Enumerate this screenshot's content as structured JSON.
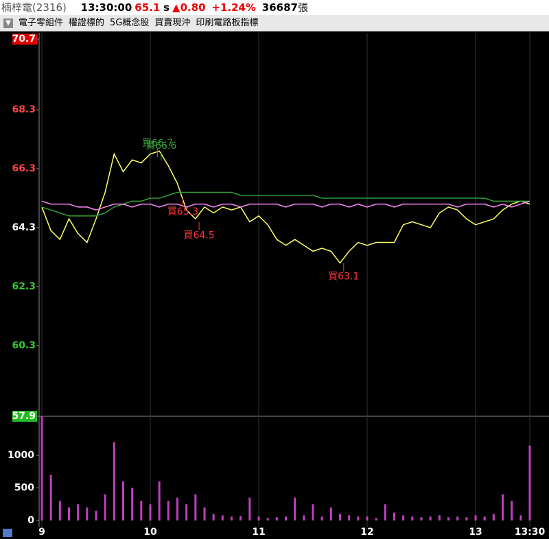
{
  "header": {
    "stock": "楠梓電(2316)",
    "time": "13:30:00",
    "price": "65.1",
    "price_flag": "s",
    "change": "0.80",
    "change_pct": "+1.24%",
    "volume": "36687",
    "volume_unit": "張"
  },
  "tags": [
    "電子零組件",
    "權證標的",
    "5G概念股",
    "買賣現沖",
    "印刷電路板指標"
  ],
  "chart_data": [
    {
      "type": "line",
      "reference": 64.3,
      "x": [
        0,
        5,
        10,
        15,
        20,
        25,
        30,
        35,
        40,
        45,
        50,
        55,
        60,
        65,
        70,
        75,
        80,
        85,
        90,
        95,
        100,
        105,
        110,
        115,
        120,
        125,
        130,
        135,
        140,
        145,
        150,
        155,
        160,
        165,
        170,
        175,
        180,
        185,
        190,
        195,
        200,
        205,
        210,
        215,
        220,
        225,
        230,
        235,
        240,
        245,
        250,
        255,
        260,
        265,
        270
      ],
      "xlim": [
        0,
        270
      ],
      "xticks": [
        {
          "value": 0,
          "label": "9"
        },
        {
          "value": 60,
          "label": "10"
        },
        {
          "value": 120,
          "label": "11"
        },
        {
          "value": 180,
          "label": "12"
        },
        {
          "value": 240,
          "label": "13"
        },
        {
          "value": 270,
          "label": "13:30"
        }
      ],
      "ylim": [
        57.9,
        70.7
      ],
      "yticks": [
        70.7,
        68.3,
        66.3,
        64.3,
        62.3,
        60.3,
        57.9
      ],
      "series": [
        {
          "color": "#ffff66",
          "values": [
            65.0,
            64.2,
            63.9,
            64.6,
            64.1,
            63.8,
            64.6,
            65.5,
            66.8,
            66.2,
            66.6,
            66.5,
            66.8,
            66.9,
            66.4,
            65.8,
            64.9,
            64.6,
            65.0,
            64.8,
            65.0,
            64.9,
            65.0,
            64.5,
            64.7,
            64.4,
            63.9,
            63.7,
            63.9,
            63.7,
            63.5,
            63.6,
            63.5,
            63.1,
            63.5,
            63.8,
            63.7,
            63.8,
            63.8,
            63.8,
            64.4,
            64.5,
            64.4,
            64.3,
            64.8,
            65.0,
            64.9,
            64.6,
            64.4,
            64.5,
            64.6,
            64.9,
            65.1,
            65.2,
            65.1
          ]
        },
        {
          "color": "#33a033",
          "values": [
            65.0,
            64.9,
            64.8,
            64.7,
            64.7,
            64.7,
            64.7,
            64.8,
            65.0,
            65.1,
            65.2,
            65.2,
            65.3,
            65.3,
            65.4,
            65.5,
            65.5,
            65.5,
            65.5,
            65.5,
            65.5,
            65.5,
            65.4,
            65.4,
            65.4,
            65.4,
            65.4,
            65.4,
            65.4,
            65.4,
            65.4,
            65.3,
            65.3,
            65.3,
            65.3,
            65.3,
            65.3,
            65.3,
            65.3,
            65.3,
            65.3,
            65.3,
            65.3,
            65.3,
            65.3,
            65.3,
            65.3,
            65.3,
            65.3,
            65.3,
            65.2,
            65.2,
            65.2,
            65.2,
            65.2
          ]
        },
        {
          "color": "#ff88ff",
          "values": [
            65.2,
            65.1,
            65.1,
            65.1,
            65.0,
            65.0,
            64.9,
            65.0,
            65.1,
            65.1,
            65.0,
            65.1,
            65.1,
            65.0,
            65.1,
            65.1,
            65.0,
            65.1,
            65.1,
            65.0,
            65.1,
            65.1,
            65.0,
            65.1,
            65.1,
            65.1,
            65.1,
            65.0,
            65.1,
            65.1,
            65.1,
            65.0,
            65.1,
            65.1,
            65.0,
            65.1,
            65.0,
            65.1,
            65.1,
            65.0,
            65.1,
            65.1,
            65.1,
            65.1,
            65.1,
            65.1,
            65.0,
            65.1,
            65.1,
            65.1,
            65.0,
            65.1,
            65.0,
            65.1,
            65.2
          ]
        }
      ],
      "annotations": [
        {
          "label": "買66.7",
          "x": 64,
          "y": 66.7,
          "color": "#33a033",
          "side": "above"
        },
        {
          "label": "買66.6",
          "x": 66,
          "y": 66.6,
          "color": "#33a033",
          "side": "above"
        },
        {
          "label": "買65.3",
          "x": 78,
          "y": 65.3,
          "color": "#ff3333",
          "side": "below"
        },
        {
          "label": "買64.5",
          "x": 87,
          "y": 64.5,
          "color": "#ff3333",
          "side": "below"
        },
        {
          "label": "買63.1",
          "x": 167,
          "y": 63.1,
          "color": "#ff3333",
          "side": "below"
        }
      ]
    },
    {
      "type": "bar",
      "color": "#c040c0",
      "ylim": [
        0,
        1600
      ],
      "yticks": [
        1000,
        500,
        0
      ],
      "x": [
        0,
        5,
        10,
        15,
        20,
        25,
        30,
        35,
        40,
        45,
        50,
        55,
        60,
        65,
        70,
        75,
        80,
        85,
        90,
        95,
        100,
        105,
        110,
        115,
        120,
        125,
        130,
        135,
        140,
        145,
        150,
        155,
        160,
        165,
        170,
        175,
        180,
        185,
        190,
        195,
        200,
        205,
        210,
        215,
        220,
        225,
        230,
        235,
        240,
        245,
        250,
        255,
        260,
        265,
        270
      ],
      "values": [
        1600,
        700,
        300,
        200,
        250,
        200,
        150,
        400,
        1200,
        600,
        500,
        300,
        250,
        600,
        300,
        350,
        250,
        400,
        200,
        100,
        80,
        60,
        70,
        350,
        60,
        40,
        50,
        60,
        350,
        80,
        250,
        60,
        200,
        100,
        80,
        60,
        60,
        40,
        250,
        120,
        80,
        60,
        50,
        60,
        80,
        50,
        60,
        50,
        80,
        60,
        100,
        400,
        300,
        80,
        1150
      ]
    }
  ]
}
